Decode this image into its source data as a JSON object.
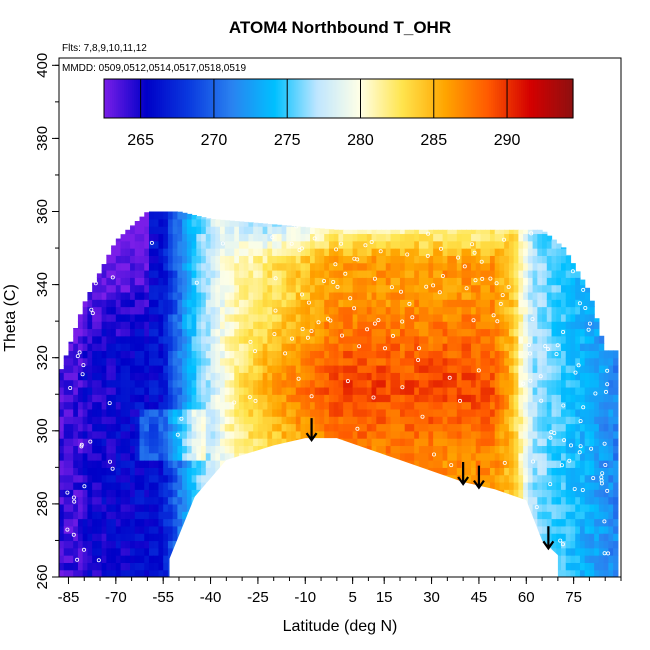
{
  "chart_data": {
    "type": "heatmap",
    "title": "ATOM4 Northbound T_OHR",
    "annotations": [
      "Flts: 7,8,9,10,11,12",
      "MMDD: 0509,0512,0514,0517,0518,0519"
    ],
    "xlabel": "Latitude (deg N)",
    "ylabel": "Theta (C)",
    "xlim": [
      -88,
      90
    ],
    "ylim": [
      260,
      402
    ],
    "x_ticks": [
      "-85",
      "-70",
      "-55",
      "-40",
      "-25",
      "-10",
      "5",
      "15",
      "30",
      "45",
      "60",
      "75"
    ],
    "x_tick_values": [
      -85,
      -70,
      -55,
      -40,
      -25,
      -10,
      5,
      15,
      30,
      45,
      60,
      75
    ],
    "y_ticks": [
      "260",
      "280",
      "300",
      "320",
      "340",
      "360",
      "380",
      "400"
    ],
    "y_tick_values": [
      260,
      280,
      300,
      320,
      340,
      360,
      380,
      400
    ],
    "colorbar": {
      "range": [
        262.5,
        294.5
      ],
      "ticks": [
        "265",
        "270",
        "275",
        "280",
        "285",
        "290"
      ],
      "tick_values": [
        265,
        270,
        275,
        280,
        285,
        290
      ],
      "colors": [
        "#7a1ee8",
        "#0000c8",
        "#0a3adf",
        "#2a82f0",
        "#00c0ff",
        "#bfe6ff",
        "#ffffe6",
        "#ffe44d",
        "#ffa500",
        "#ff5a00",
        "#d40000",
        "#8e1010"
      ]
    },
    "arrows_at_latitude": [
      -8,
      40,
      45,
      67
    ],
    "floor": {
      "latitude": [
        -53,
        -45,
        -35,
        -20,
        -10,
        0,
        10,
        20,
        30,
        40,
        50,
        60,
        65,
        70
      ],
      "theta": [
        265,
        282,
        292,
        296,
        298,
        298,
        295,
        292,
        289,
        286,
        284,
        281,
        270,
        266
      ]
    },
    "ceiling": {
      "latitude": [
        -88,
        -80,
        -70,
        -60,
        -50,
        -40,
        0,
        40,
        65,
        72,
        80,
        85
      ],
      "theta": [
        315,
        335,
        352,
        360,
        360,
        358,
        355,
        355,
        355,
        350,
        338,
        322
      ]
    }
  }
}
